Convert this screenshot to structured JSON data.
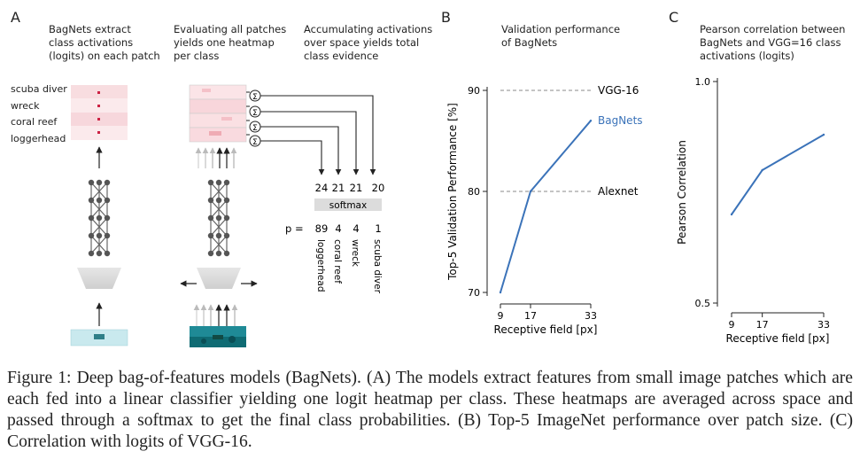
{
  "panel_a": {
    "label": "A",
    "step1": "BagNets extract\nclass activations\n(logits) on each patch",
    "step2": "Evaluating all patches\nyields one heatmap\nper class",
    "step3": "Accumulating activations\nover space yields total\nclass evidence",
    "classes": [
      "scuba diver",
      "wreck",
      "coral reef",
      "loggerhead"
    ],
    "logits": [
      "24",
      "21",
      "21",
      "20"
    ],
    "softmax_label": "softmax",
    "p_label": "p =",
    "probabilities": [
      "89",
      "4",
      "4",
      "1"
    ],
    "output_classes": [
      "loggerhead",
      "coral reef",
      "wreck",
      "scuba diver"
    ],
    "sum_symbol": "Σ"
  },
  "panel_b": {
    "label": "B",
    "title": "Validation performance\nof BagNets"
  },
  "panel_c": {
    "label": "C",
    "title": "Pearson correlation between\nBagNets and VGG=16 class\nactivations (logits)"
  },
  "caption": "Figure 1: Deep bag-of-features models (BagNets). (A) The models extract features from small image patches which are each fed into a linear classifier yielding one logit heatmap per class. These heatmaps are averaged across space and passed through a softmax to get the final class probabilities. (B) Top-5 ImageNet performance over patch size. (C) Correlation with logits of VGG-16.",
  "colors": {
    "series": "#3b73b9",
    "reference": "#888888",
    "water": "#2f9aa6",
    "heat": "#f2b8bf"
  },
  "chart_data": [
    {
      "type": "line",
      "xlabel": "Receptive field [px]",
      "ylabel": "Top-5 Validation Performance [%]",
      "x": [
        9,
        17,
        33
      ],
      "xlim": [
        9,
        33
      ],
      "ylim": [
        70,
        90
      ],
      "xticks": [
        "9",
        "17",
        "33"
      ],
      "yticks": [
        "70",
        "80",
        "90"
      ],
      "series": [
        {
          "name": "BagNets",
          "values": [
            70.0,
            80.0,
            87.0
          ]
        }
      ],
      "reference_lines": [
        {
          "name": "VGG-16",
          "value": 90
        },
        {
          "name": "Alexnet",
          "value": 80
        }
      ],
      "grid": false
    },
    {
      "type": "line",
      "xlabel": "Receptive field [px]",
      "ylabel": "Pearson Correlation",
      "x": [
        9,
        17,
        33
      ],
      "xlim": [
        9,
        33
      ],
      "ylim": [
        0.5,
        1.0
      ],
      "xticks": [
        "9",
        "17",
        "33"
      ],
      "yticks": [
        "0.5",
        "1.0"
      ],
      "series": [
        {
          "values": [
            0.7,
            0.8,
            0.88
          ]
        }
      ],
      "grid": false
    }
  ]
}
